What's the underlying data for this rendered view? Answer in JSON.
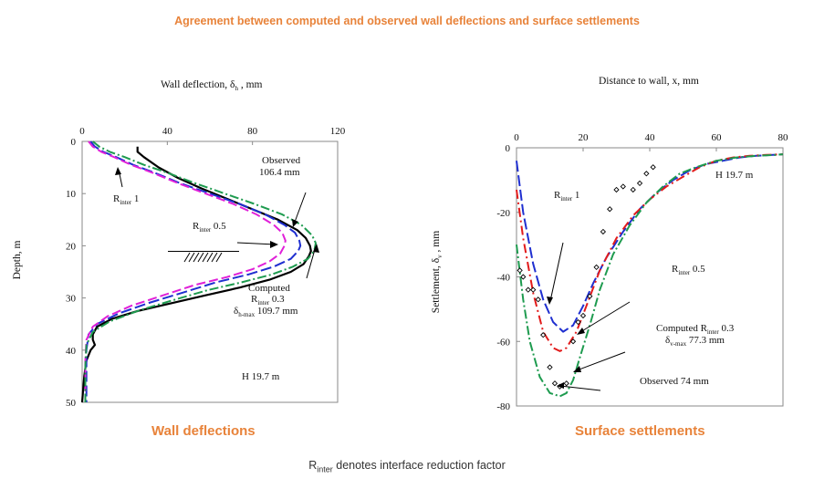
{
  "page_title": "Agreement between computed and observed wall deflections and surface settlements",
  "footnote": {
    "prefix": "R",
    "sub": "inter",
    "rest": " denotes interface reduction factor"
  },
  "colors": {
    "accent": "#e8833a",
    "observed": "#000000",
    "r1": "#1f2fd0",
    "r05": "#e21b1b",
    "r03": "#1e9b4f",
    "r05_wall": "#e020d8"
  },
  "chart_data": [
    {
      "type": "line",
      "name": "wall-deflection-chart",
      "title": "Wall deflection, δ_h , mm",
      "caption": "Wall deflections",
      "xlabel": "Wall deflection, δh , mm",
      "ylabel": "Depth, m",
      "xlim": [
        0,
        120
      ],
      "ylim": [
        50,
        0
      ],
      "x_ticks": [
        "0",
        "40",
        "80",
        "120"
      ],
      "x_tick_values": [
        0,
        40,
        80,
        120
      ],
      "y_ticks": [
        "0",
        "10",
        "20",
        "30",
        "40",
        "50"
      ],
      "y_tick_values": [
        0,
        10,
        20,
        30,
        40,
        50
      ],
      "series": [
        {
          "name": "Observed",
          "key": "observed",
          "dash": "",
          "width": 2.2,
          "x": [
            26,
            26,
            29,
            36,
            45,
            56,
            68,
            80,
            92,
            101,
            105,
            107,
            107.5,
            106.5,
            104,
            98,
            88,
            74,
            58,
            42,
            26,
            14,
            7,
            5,
            5,
            6,
            4,
            2,
            1,
            0
          ],
          "y": [
            1,
            2,
            3,
            5,
            7,
            9,
            11,
            13,
            15,
            17,
            18.5,
            20,
            21,
            22,
            23.5,
            25,
            26.5,
            28,
            29.5,
            31,
            32.5,
            34,
            35.5,
            37,
            38,
            39,
            40,
            42,
            45,
            50
          ]
        },
        {
          "name": "Rinter 1",
          "key": "r1",
          "dash": "12,4",
          "width": 2,
          "x": [
            4,
            6,
            10,
            16,
            24,
            34,
            46,
            60,
            74,
            86,
            95,
            100,
            102,
            102.5,
            101.5,
            98,
            90,
            78,
            63,
            47,
            31,
            17,
            7,
            3,
            2,
            2,
            2
          ],
          "y": [
            0,
            1,
            2,
            3,
            4.5,
            6,
            8,
            10,
            12,
            14,
            16,
            17.5,
            19,
            20,
            21,
            22.5,
            24,
            25.5,
            27,
            29,
            31,
            33,
            35,
            37,
            40,
            45,
            50
          ]
        },
        {
          "name": "Rinter 0.5",
          "key": "r05_wall",
          "dash": "10,4",
          "width": 2,
          "x": [
            3,
            5,
            9,
            15,
            23,
            33,
            45,
            58,
            71,
            82,
            90,
            94,
            95.5,
            95,
            93,
            88,
            80,
            68,
            53,
            38,
            23,
            12,
            5,
            2,
            1.5,
            1.5
          ],
          "y": [
            0,
            1,
            2,
            3,
            4.5,
            6,
            8,
            10,
            12,
            14,
            16,
            17.5,
            19,
            20,
            21.5,
            23,
            24.5,
            26,
            27.5,
            29.5,
            31.5,
            33.5,
            35.5,
            38,
            42,
            50
          ]
        },
        {
          "name": "Computed Rinter 0.3",
          "key": "r03",
          "dash": "10,3,2,3",
          "width": 2,
          "x": [
            5,
            8,
            13,
            20,
            29,
            40,
            53,
            67,
            81,
            94,
            103,
            108,
            109.7,
            109,
            106,
            99,
            89,
            75,
            59,
            42,
            26,
            13,
            5,
            2,
            1.5,
            1.5
          ],
          "y": [
            0,
            1,
            2,
            3,
            4.5,
            6,
            8,
            10,
            12,
            14,
            16,
            18,
            19.5,
            21,
            22.5,
            24,
            25.5,
            27,
            28.5,
            30.5,
            32.5,
            34.5,
            36.5,
            39,
            43,
            50
          ]
        }
      ],
      "annotations": {
        "observed_label": "Observed",
        "observed_value": "106.4 mm",
        "r1_label_prefix": "R",
        "r1_label_sub": "inter",
        "r1_label_value": " 1",
        "r05_label_prefix": "R",
        "r05_label_sub": "inter",
        "r05_label_value": " 0.5",
        "computed_label": "Computed",
        "computed_r_prefix": "R",
        "computed_r_sub": "inter",
        "computed_r_value": " 0.3",
        "computed_d_prefix": "δ",
        "computed_d_sub": "h-max",
        "computed_d_value": " 109.7 mm",
        "excavation_label": "H 19.7 m"
      }
    },
    {
      "type": "line",
      "name": "surface-settlement-chart",
      "title": "Distance to wall, x, mm",
      "caption": "Surface settlements",
      "xlabel": "Distance to wall, x, mm",
      "ylabel": "Settlement, δv , mm",
      "xlim": [
        0,
        80
      ],
      "ylim": [
        -80,
        0
      ],
      "x_ticks": [
        "0",
        "20",
        "40",
        "60",
        "80"
      ],
      "x_tick_values": [
        0,
        20,
        40,
        60,
        80
      ],
      "y_ticks": [
        "0",
        "-20",
        "-40",
        "-60",
        "-80"
      ],
      "y_tick_values": [
        0,
        -20,
        -40,
        -60,
        -80
      ],
      "series": [
        {
          "name": "Rinter 1",
          "key": "r1",
          "dash": "12,4",
          "width": 2,
          "x": [
            0,
            2,
            5,
            8,
            11,
            14,
            17,
            20,
            23,
            27,
            32,
            37,
            42,
            47,
            52,
            57,
            62,
            67,
            72,
            77,
            80
          ],
          "y": [
            -4,
            -20,
            -36,
            -47,
            -54,
            -57,
            -55,
            -49,
            -42,
            -34,
            -26,
            -19,
            -14,
            -10,
            -7,
            -5,
            -4,
            -3,
            -2.5,
            -2.2,
            -2
          ]
        },
        {
          "name": "Rinter 0.5",
          "key": "r05",
          "dash": "10,4,2,4",
          "width": 2,
          "x": [
            0,
            2,
            5,
            8,
            11,
            13,
            15,
            18,
            21,
            25,
            30,
            35,
            40,
            45,
            50,
            55,
            60,
            65,
            70,
            75,
            80
          ],
          "y": [
            -13,
            -28,
            -45,
            -57,
            -62,
            -63,
            -62,
            -57,
            -49,
            -38,
            -28,
            -21,
            -16,
            -12,
            -9,
            -6,
            -4,
            -3,
            -2.5,
            -2.2,
            -2
          ]
        },
        {
          "name": "Computed Rinter 0.3",
          "key": "r03",
          "dash": "10,3,2,3",
          "width": 2,
          "x": [
            0,
            2,
            4,
            7,
            10,
            13,
            15,
            17,
            19,
            22,
            25,
            29,
            34,
            39,
            44,
            49,
            54,
            60,
            66,
            72,
            78,
            80
          ],
          "y": [
            -30,
            -47,
            -60,
            -71,
            -76,
            -77,
            -76,
            -72,
            -65,
            -55,
            -44,
            -33,
            -24,
            -17,
            -12,
            -8,
            -6,
            -4,
            -3,
            -2.5,
            -2.2,
            -2
          ]
        }
      ],
      "observed_points": {
        "x": [
          1,
          2,
          3.5,
          5,
          6.5,
          8,
          10,
          11.5,
          13,
          15,
          17,
          18.5,
          20,
          22,
          24,
          26,
          28,
          30,
          32,
          35,
          37,
          39,
          41
        ],
        "y": [
          -38,
          -40,
          -44,
          -44,
          -47,
          -58,
          -68,
          -73,
          -74,
          -73,
          -60,
          -54,
          -52,
          -46,
          -37,
          -26,
          -19,
          -13,
          -12,
          -13,
          -11,
          -8,
          -6
        ]
      },
      "annotations": {
        "r1_label_prefix": "R",
        "r1_label_sub": "inter",
        "r1_label_value": " 1",
        "r05_label_prefix": "R",
        "r05_label_sub": "inter",
        "r05_label_value": " 0.5",
        "computed_label": "Computed R",
        "computed_r_sub": "inter",
        "computed_r_value": " 0.3",
        "computed_d_prefix": "δ",
        "computed_d_sub": "v-max",
        "computed_d_value": " 77.3 mm",
        "observed_label": "Observed 74 mm",
        "excavation_label": "H 19.7 m"
      }
    }
  ]
}
